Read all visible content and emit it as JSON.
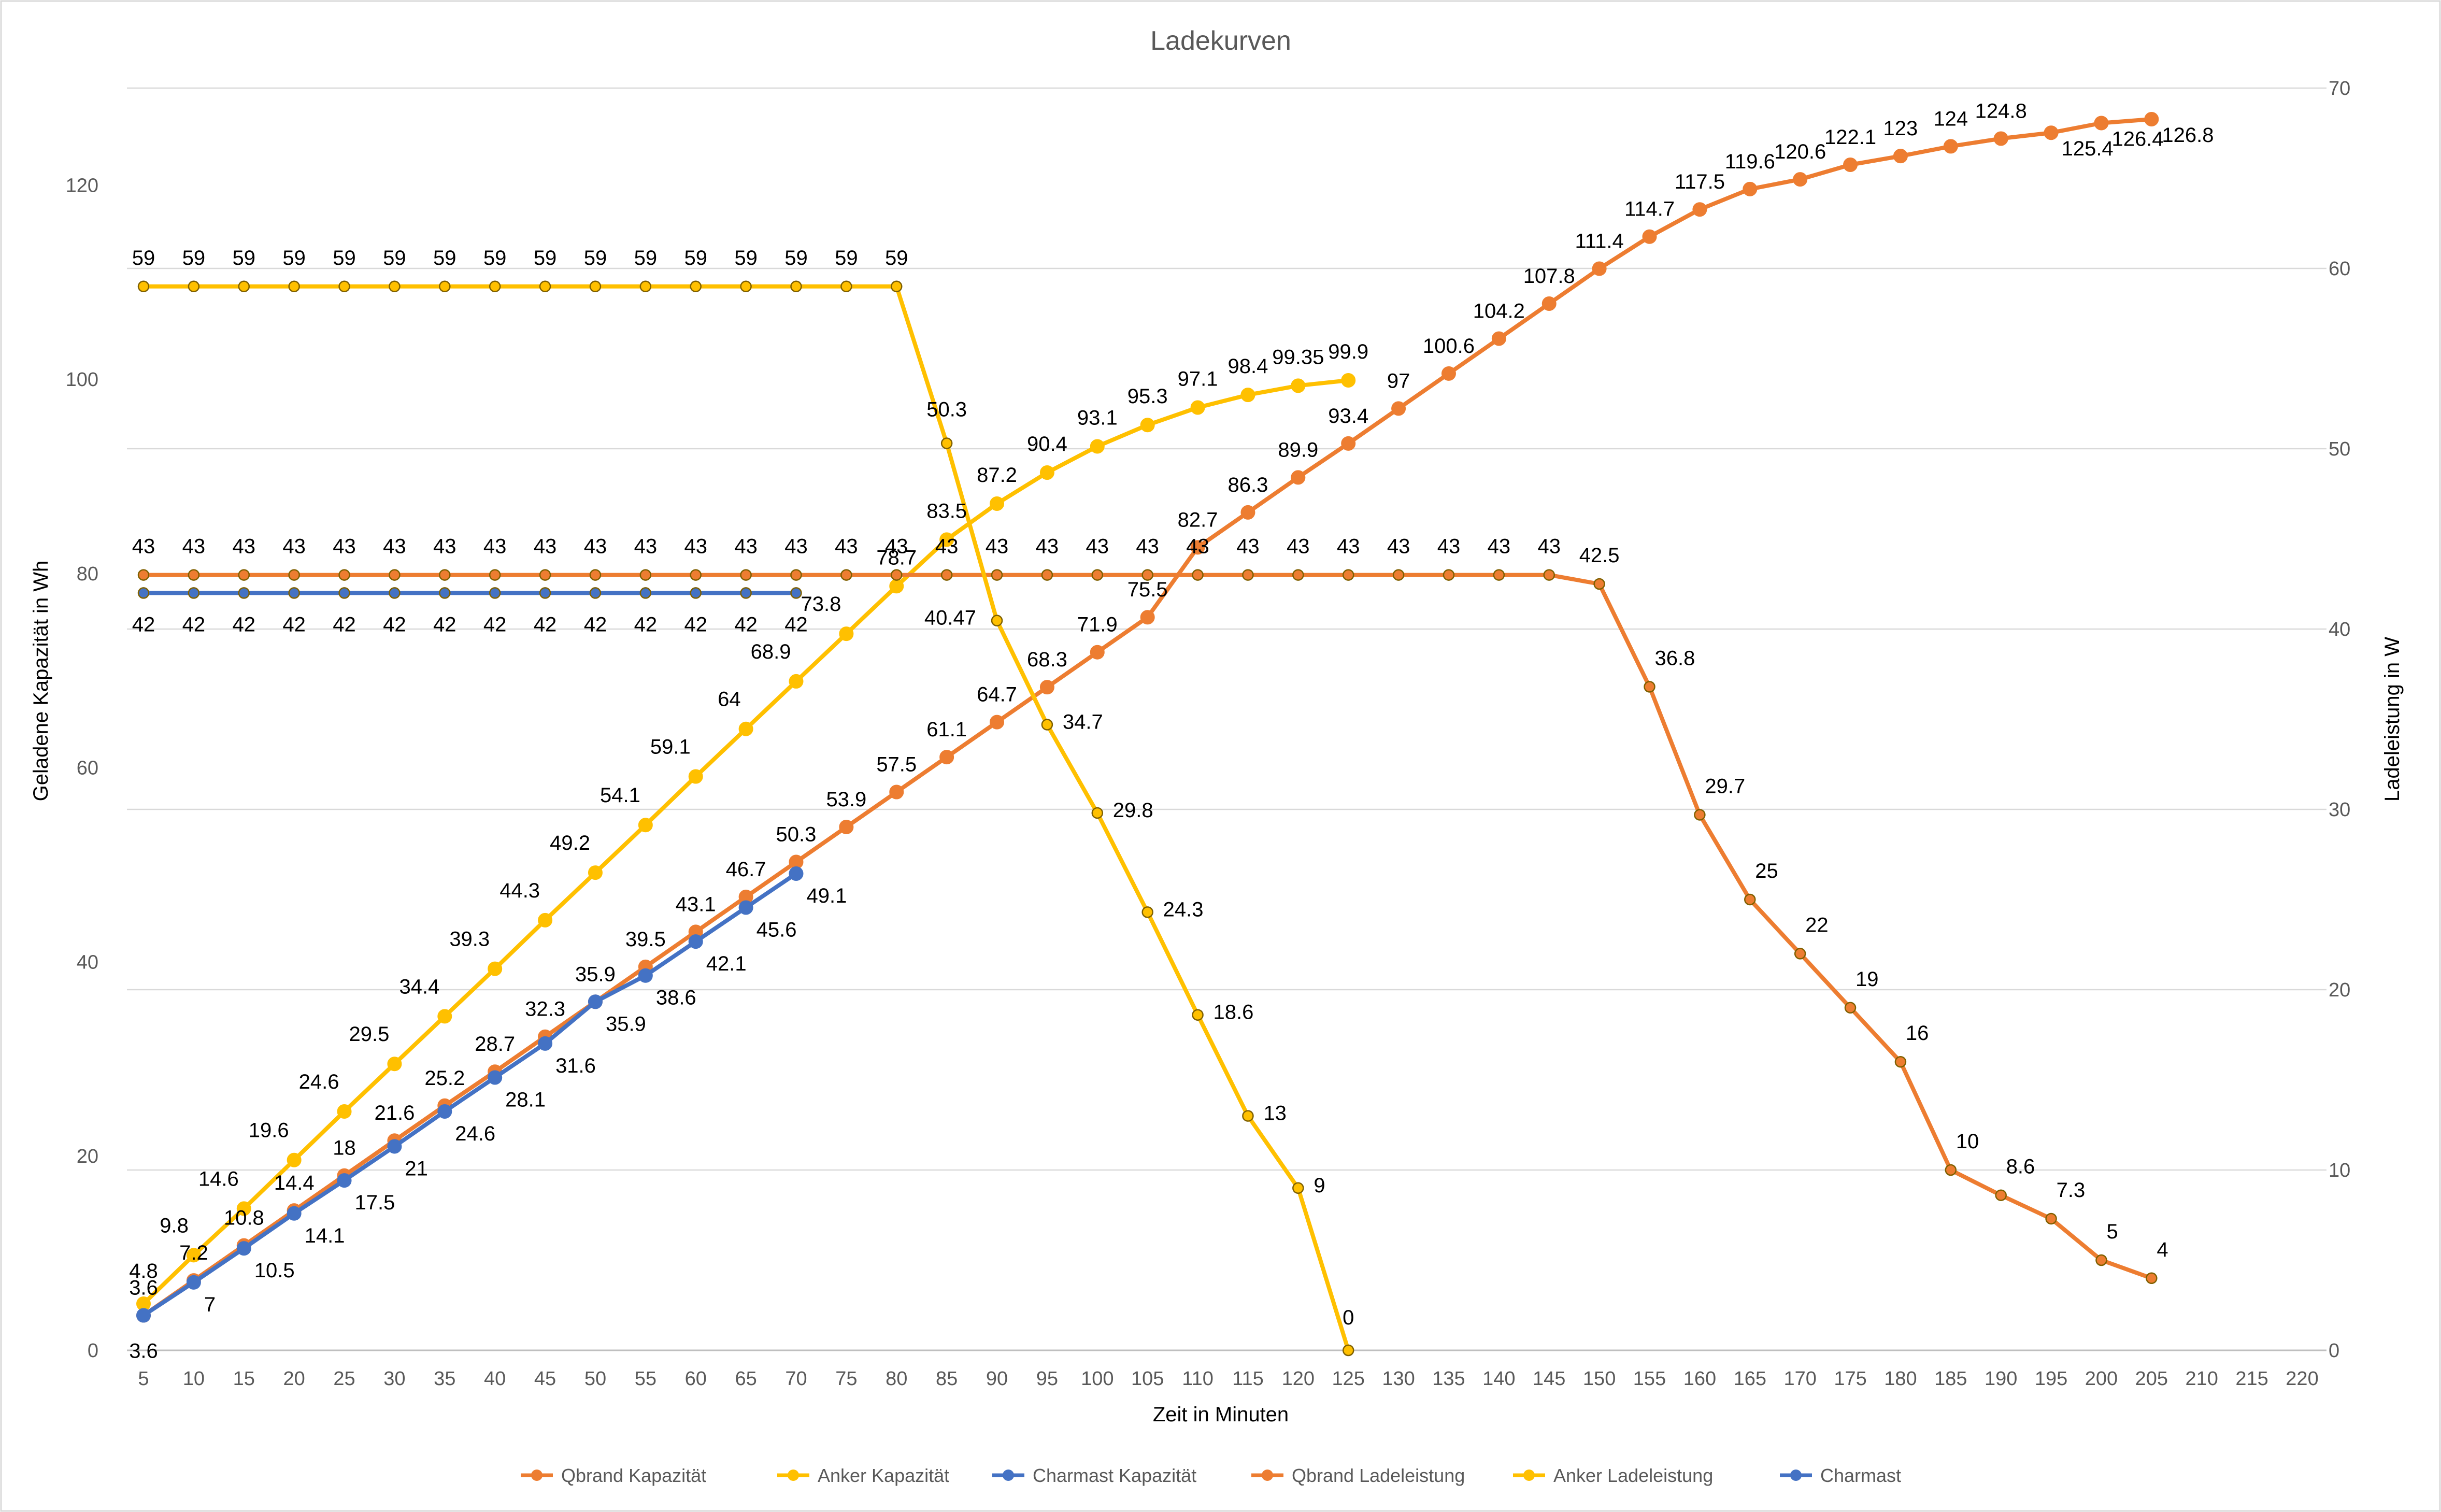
{
  "chart_data": {
    "type": "line",
    "title": "Ladekurven",
    "xlabel": "Zeit in Minuten",
    "ylabel_left": "Geladene Kapazität in Wh",
    "ylabel_right": "Ladeleistung in W",
    "x_ticks": [
      5,
      10,
      15,
      20,
      25,
      30,
      35,
      40,
      45,
      50,
      55,
      60,
      65,
      70,
      75,
      80,
      85,
      90,
      95,
      100,
      105,
      110,
      115,
      120,
      125,
      130,
      135,
      140,
      145,
      150,
      155,
      160,
      165,
      170,
      175,
      180,
      185,
      190,
      195,
      200,
      205,
      210,
      215,
      220
    ],
    "y_left_ticks": [
      0,
      20,
      40,
      60,
      80,
      100,
      120
    ],
    "y_right_ticks": [
      0,
      10,
      20,
      30,
      40,
      50,
      60,
      70
    ],
    "ylim_left": [
      0,
      130
    ],
    "ylim_right": [
      0,
      70
    ],
    "grid": true,
    "legend_position": "bottom",
    "series": [
      {
        "name": "Qbrand Kapazität",
        "axis": "left",
        "color": "#ED7D31",
        "x": [
          5,
          10,
          15,
          20,
          25,
          30,
          35,
          40,
          45,
          50,
          55,
          60,
          65,
          70,
          75,
          80,
          85,
          90,
          95,
          100,
          105,
          110,
          115,
          120,
          125,
          130,
          135,
          140,
          145,
          150,
          155,
          160,
          165,
          170,
          175,
          180,
          185,
          190,
          195,
          200,
          205
        ],
        "values": [
          3.6,
          7.2,
          10.8,
          14.4,
          18,
          21.6,
          25.2,
          28.7,
          32.3,
          35.9,
          39.5,
          43.1,
          46.7,
          50.3,
          53.9,
          57.5,
          61.1,
          64.7,
          68.3,
          71.9,
          75.5,
          82.7,
          86.3,
          89.9,
          93.4,
          97,
          100.6,
          104.2,
          107.8,
          111.4,
          114.7,
          117.5,
          119.6,
          120.6,
          122.1,
          123,
          124,
          124.8,
          125.4,
          126.4,
          126.8
        ]
      },
      {
        "name": "Anker Kapazität",
        "axis": "left",
        "color": "#FFC000",
        "x": [
          5,
          10,
          15,
          20,
          25,
          30,
          35,
          40,
          45,
          50,
          55,
          60,
          65,
          70,
          75,
          80,
          85,
          90,
          95,
          100,
          105,
          110,
          115,
          120,
          125
        ],
        "values": [
          4.8,
          9.8,
          14.6,
          19.6,
          24.6,
          29.5,
          34.4,
          39.3,
          44.3,
          49.2,
          54.1,
          59.1,
          64,
          68.9,
          73.8,
          78.7,
          83.5,
          87.2,
          90.4,
          93.1,
          95.3,
          97.1,
          98.4,
          99.35,
          99.9
        ]
      },
      {
        "name": "Charmast Kapazität",
        "axis": "left",
        "color": "#4472C4",
        "x": [
          5,
          10,
          15,
          20,
          25,
          30,
          35,
          40,
          45,
          50,
          55,
          60,
          65,
          70
        ],
        "values": [
          3.6,
          7,
          10.5,
          14.1,
          17.5,
          21,
          24.6,
          28.1,
          31.6,
          35.9,
          38.6,
          42.1,
          45.6,
          49.1
        ]
      },
      {
        "name": "Qbrand Ladeleistung",
        "axis": "right",
        "color": "#ED7D31",
        "x": [
          5,
          10,
          15,
          20,
          25,
          30,
          35,
          40,
          45,
          50,
          55,
          60,
          65,
          70,
          75,
          80,
          85,
          90,
          95,
          100,
          105,
          110,
          115,
          120,
          125,
          130,
          135,
          140,
          145,
          150,
          155,
          160,
          165,
          170,
          175,
          180,
          185,
          190,
          195,
          200,
          205
        ],
        "values": [
          43,
          43,
          43,
          43,
          43,
          43,
          43,
          43,
          43,
          43,
          43,
          43,
          43,
          43,
          43,
          43,
          43,
          43,
          43,
          43,
          43,
          43,
          43,
          43,
          43,
          43,
          43,
          43,
          43,
          42.5,
          36.8,
          29.7,
          25,
          22,
          19,
          16,
          10,
          8.6,
          7.3,
          5,
          4
        ]
      },
      {
        "name": "Anker Ladeleistung",
        "axis": "right",
        "color": "#FFC000",
        "x": [
          5,
          10,
          15,
          20,
          25,
          30,
          35,
          40,
          45,
          50,
          55,
          60,
          65,
          70,
          75,
          80,
          85,
          90,
          95,
          100,
          105,
          110,
          115,
          120,
          125
        ],
        "values": [
          59,
          59,
          59,
          59,
          59,
          59,
          59,
          59,
          59,
          59,
          59,
          59,
          59,
          59,
          59,
          59,
          50.3,
          40.47,
          34.7,
          29.8,
          24.3,
          18.6,
          13,
          9,
          0
        ]
      },
      {
        "name": "Charmast",
        "axis": "right",
        "color": "#4472C4",
        "x": [
          5,
          10,
          15,
          20,
          25,
          30,
          35,
          40,
          45,
          50,
          55,
          60,
          65,
          70
        ],
        "values": [
          42,
          42,
          42,
          42,
          42,
          42,
          42,
          42,
          42,
          42,
          42,
          42,
          42,
          42
        ]
      }
    ]
  }
}
